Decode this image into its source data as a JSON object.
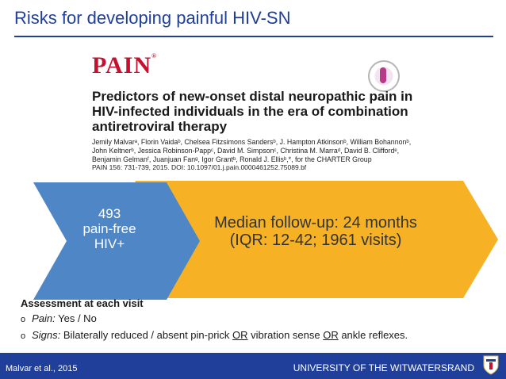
{
  "slide": {
    "title": "Risks for developing painful HIV-SN"
  },
  "paper": {
    "journal_logo": "PAIN",
    "journal_logo_tm": "®",
    "title_lines": [
      "Predictors of new-onset distal neuropathic pain in",
      "HIV-infected individuals in the era of combination",
      "antiretroviral therapy"
    ],
    "author_lines": [
      "Jemily Malvarᵃ, Florin Vaidaᵇ, Chelsea Fitzsimons Sandersᵇ, J. Hampton Atkinsonᵇ, William Bohannonᵇ,",
      "John Keltnerᵇ, Jessica Robinson-Pappᶜ, David M. Simpsonᶜ, Christina M. Marraᵈ, David B. Cliffordᵉ,",
      "Benjamin Gelmanᶠ, Juanjuan Fanᵍ, Igor Grantᵇ, Ronald J. Ellisᵇ,*, for the CHARTER Group"
    ],
    "citation": "PAIN 156: 731-739, 2015. DOI: 10.1097/01.j.pain.0000461252.75089.bf"
  },
  "diagram": {
    "left_lines": [
      "493",
      "pain-free",
      "HIV+"
    ],
    "right_lines": [
      "Median follow-up: 24 months",
      "(IQR: 12-42; 1961 visits)"
    ],
    "colors": {
      "left": "#4f86c6",
      "right": "#f6b224"
    }
  },
  "assessment": {
    "heading": "Assessment at each visit",
    "bullet_glyph": "o",
    "pain_label": "Pain:",
    "pain_value": " Yes / No",
    "signs_label": "Signs:",
    "signs_part1": " Bilaterally reduced / absent  pin-prick ",
    "or1": "OR",
    "signs_part2": " vibration sense ",
    "or2": "OR",
    "signs_part3": " ankle reflexes."
  },
  "footer": {
    "citation": "Malvar et al., 2015",
    "university": "UNIVERSITY OF THE WITWATERSRAND",
    "color": "#1f3f9b"
  }
}
